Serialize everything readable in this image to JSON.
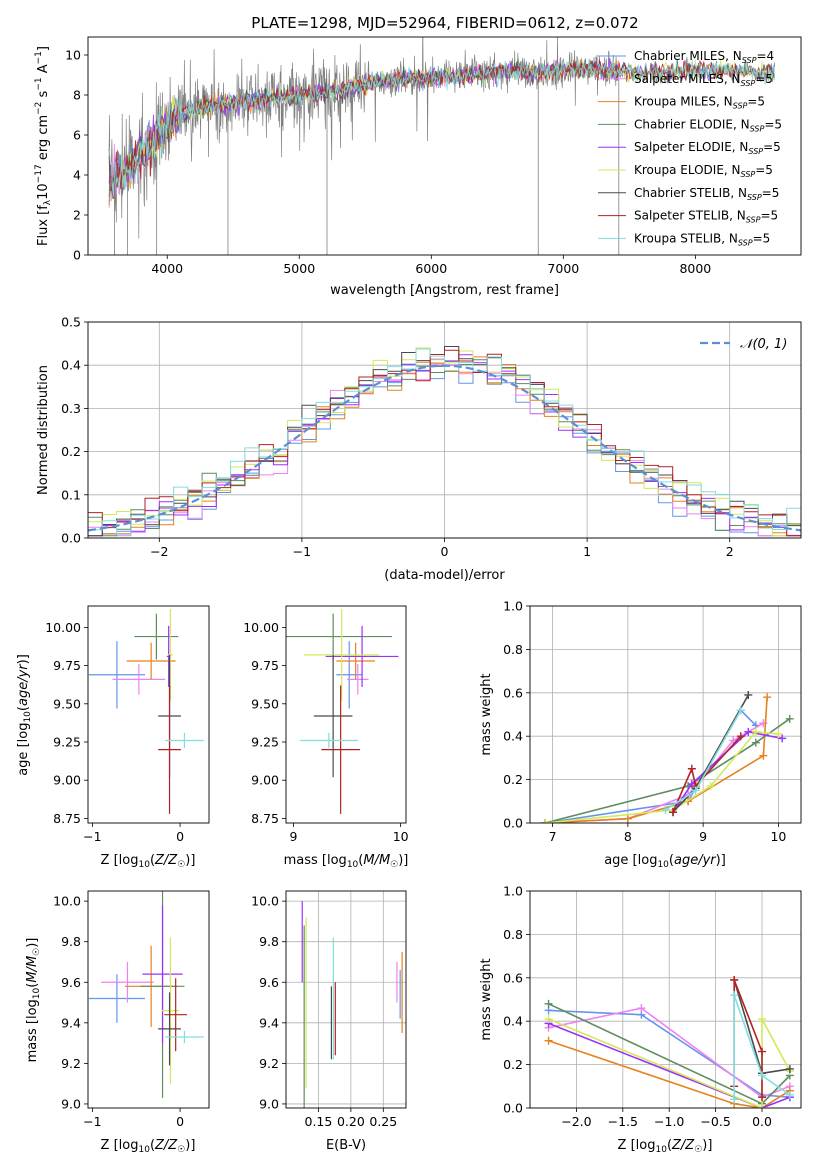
{
  "figure": {
    "title": "PLATE=1298, MJD=52964, FIBERID=0612, z=0.072"
  },
  "colors": {
    "Chabrier MILES": "#6495ed",
    "Salpeter MILES": "#ee82ee",
    "Kroupa MILES": "#e6821e",
    "Chabrier ELODIE": "#5f8c5f",
    "Salpeter ELODIE": "#9b30ff",
    "Kroupa ELODIE": "#d4e85a",
    "Chabrier STELIB": "#4a4a4a",
    "Salpeter STELIB": "#b22222",
    "Kroupa STELIB": "#80dde0",
    "data": "#808080"
  },
  "chart_data": [
    {
      "id": "spectrum",
      "type": "line",
      "title": "PLATE=1298, MJD=52964, FIBERID=0612, z=0.072",
      "xlabel": "wavelength [Angstrom, rest frame]",
      "ylabel": "Flux [f_λ 10^-17 erg cm^-2 s^-1 A^-1]",
      "xlim": [
        3400,
        8800
      ],
      "ylim": [
        0,
        10.9
      ],
      "xticks": [
        4000,
        5000,
        6000,
        7000,
        8000
      ],
      "yticks": [
        0,
        2,
        4,
        6,
        8,
        10
      ],
      "legend_position": "right",
      "legend": [
        {
          "label": "Chabrier MILES, N_SSP=4",
          "color": "#6495ed"
        },
        {
          "label": "Salpeter MILES, N_SSP=5",
          "color": "#ee82ee"
        },
        {
          "label": "Kroupa MILES, N_SSP=5",
          "color": "#e6821e"
        },
        {
          "label": "Chabrier ELODIE, N_SSP=5",
          "color": "#5f8c5f"
        },
        {
          "label": "Salpeter ELODIE, N_SSP=5",
          "color": "#9b30ff"
        },
        {
          "label": "Kroupa ELODIE, N_SSP=5",
          "color": "#d4e85a"
        },
        {
          "label": "Chabrier STELIB, N_SSP=5",
          "color": "#4a4a4a"
        },
        {
          "label": "Salpeter STELIB, N_SSP=5",
          "color": "#b22222"
        },
        {
          "label": "Kroupa STELIB, N_SSP=5",
          "color": "#80dde0"
        }
      ],
      "continuum_x": [
        3560,
        3700,
        3850,
        3950,
        4100,
        4300,
        4500,
        4800,
        5000,
        5300,
        5600,
        6000,
        6300,
        6600,
        6800,
        7000,
        7200,
        7400,
        7600,
        7900,
        8200,
        8500
      ],
      "continuum_y": [
        3.9,
        4.2,
        5.4,
        6.2,
        7.1,
        7.4,
        7.6,
        7.9,
        8.0,
        8.2,
        8.7,
        8.9,
        9.0,
        9.2,
        9.1,
        9.3,
        9.3,
        9.2,
        9.1,
        9.2,
        9.3,
        9.1
      ],
      "model_x_range": [
        3560,
        8600
      ],
      "data_x_range": [
        3560,
        7420
      ]
    },
    {
      "id": "residual_histogram",
      "type": "histogram",
      "xlabel": "(data-model)/error",
      "ylabel": "Normed distribution",
      "xlim": [
        -2.5,
        2.5
      ],
      "ylim": [
        0,
        0.5
      ],
      "xticks": [
        -2,
        -1,
        0,
        1,
        2
      ],
      "yticks": [
        0.0,
        0.1,
        0.2,
        0.3,
        0.4,
        0.5
      ],
      "bin_width": 0.1,
      "reference_curve": {
        "label": "N(0,1)",
        "type": "gaussian",
        "mean": 0,
        "sigma": 1,
        "color": "#5b8fd6"
      },
      "grid": true
    },
    {
      "id": "age_vs_Z",
      "type": "errorbar",
      "xlabel": "Z [log10(Z/Z☉)]",
      "ylabel": "age [log10(age/yr)]",
      "xlim": [
        -1.05,
        0.33
      ],
      "ylim": [
        8.72,
        10.14
      ],
      "xticks": [
        -1,
        0
      ],
      "yticks": [
        8.75,
        9.0,
        9.25,
        9.5,
        9.75,
        10.0
      ],
      "points": [
        {
          "model": "Chabrier MILES",
          "x": -0.72,
          "xerr": 0.32,
          "y": 9.69,
          "yerr": 0.22
        },
        {
          "model": "Salpeter MILES",
          "x": -0.47,
          "xerr": 0.3,
          "y": 9.66,
          "yerr": 0.1
        },
        {
          "model": "Kroupa MILES",
          "x": -0.33,
          "xerr": 0.28,
          "y": 9.78,
          "yerr": 0.12
        },
        {
          "model": "Chabrier ELODIE",
          "x": -0.27,
          "xerr": 0.25,
          "y": 9.94,
          "yerr": 0.15
        },
        {
          "model": "Salpeter ELODIE",
          "x": -0.13,
          "xerr": 0.02,
          "y": 9.81,
          "yerr": 0.2
        },
        {
          "model": "Kroupa ELODIE",
          "x": -0.11,
          "xerr": 0.03,
          "y": 9.82,
          "yerr": 0.3
        },
        {
          "model": "Chabrier STELIB",
          "x": -0.12,
          "xerr": 0.13,
          "y": 9.42,
          "yerr": 0.4
        },
        {
          "model": "Salpeter STELIB",
          "x": -0.12,
          "xerr": 0.13,
          "y": 9.2,
          "yerr": 0.42
        },
        {
          "model": "Kroupa STELIB",
          "x": 0.05,
          "xerr": 0.22,
          "y": 9.26,
          "yerr": 0.05
        }
      ]
    },
    {
      "id": "age_vs_mass",
      "type": "errorbar",
      "xlabel": "mass [log10(M/M☉)]",
      "ylabel": "",
      "xlim": [
        8.93,
        10.05
      ],
      "ylim": [
        8.72,
        10.14
      ],
      "xticks": [
        9,
        10
      ],
      "yticks": [
        8.75,
        9.0,
        9.25,
        9.5,
        9.75,
        10.0
      ],
      "points": [
        {
          "model": "Chabrier MILES",
          "x": 9.52,
          "xerr": 0.12,
          "y": 9.69,
          "yerr": 0.22
        },
        {
          "model": "Salpeter MILES",
          "x": 9.6,
          "xerr": 0.1,
          "y": 9.66,
          "yerr": 0.1
        },
        {
          "model": "Kroupa MILES",
          "x": 9.58,
          "xerr": 0.18,
          "y": 9.78,
          "yerr": 0.12
        },
        {
          "model": "Chabrier ELODIE",
          "x": 9.37,
          "xerr": 0.55,
          "y": 9.94,
          "yerr": 0.15
        },
        {
          "model": "Salpeter ELODIE",
          "x": 9.64,
          "xerr": 0.34,
          "y": 9.81,
          "yerr": 0.2
        },
        {
          "model": "Kroupa ELODIE",
          "x": 9.45,
          "xerr": 0.35,
          "y": 9.82,
          "yerr": 0.3
        },
        {
          "model": "Chabrier STELIB",
          "x": 9.37,
          "xerr": 0.18,
          "y": 9.42,
          "yerr": 0.4
        },
        {
          "model": "Salpeter STELIB",
          "x": 9.44,
          "xerr": 0.18,
          "y": 9.2,
          "yerr": 0.42
        },
        {
          "model": "Kroupa STELIB",
          "x": 9.33,
          "xerr": 0.27,
          "y": 9.26,
          "yerr": 0.05
        }
      ]
    },
    {
      "id": "mass_weight_vs_age",
      "type": "line",
      "xlabel": "age [log10(age/yr)]",
      "ylabel": "mass weight",
      "xlim": [
        6.7,
        10.3
      ],
      "ylim": [
        0,
        1.0
      ],
      "xticks": [
        7,
        8,
        9,
        10
      ],
      "yticks": [
        0.0,
        0.2,
        0.4,
        0.6,
        0.8,
        1.0
      ],
      "grid": true,
      "series": [
        {
          "model": "Chabrier MILES",
          "x": [
            6.9,
            8.8,
            9.5,
            9.7
          ],
          "y": [
            0.0,
            0.1,
            0.52,
            0.45
          ]
        },
        {
          "model": "Salpeter MILES",
          "x": [
            6.9,
            8.0,
            8.8,
            9.4,
            9.8
          ],
          "y": [
            0.0,
            0.02,
            0.13,
            0.38,
            0.46
          ]
        },
        {
          "model": "Kroupa MILES",
          "x": [
            6.9,
            8.0,
            8.8,
            9.8,
            9.85
          ],
          "y": [
            0.0,
            0.02,
            0.1,
            0.31,
            0.58
          ]
        },
        {
          "model": "Chabrier ELODIE",
          "x": [
            6.9,
            8.8,
            9.7,
            10.15
          ],
          "y": [
            0.0,
            0.17,
            0.37,
            0.48
          ]
        },
        {
          "model": "Salpeter ELODIE",
          "x": [
            8.6,
            8.85,
            9.6,
            10.05
          ],
          "y": [
            0.05,
            0.18,
            0.42,
            0.39
          ]
        },
        {
          "model": "Kroupa ELODIE",
          "x": [
            6.9,
            8.6,
            9.1,
            9.7,
            10.0
          ],
          "y": [
            0.0,
            0.06,
            0.17,
            0.42,
            0.41
          ]
        },
        {
          "model": "Chabrier STELIB",
          "x": [
            8.6,
            8.9,
            9.6
          ],
          "y": [
            0.05,
            0.16,
            0.59
          ]
        },
        {
          "model": "Salpeter STELIB",
          "x": [
            8.6,
            8.85,
            8.9,
            9.5
          ],
          "y": [
            0.05,
            0.25,
            0.17,
            0.4
          ]
        },
        {
          "model": "Kroupa STELIB",
          "x": [
            8.5,
            8.9,
            9.5
          ],
          "y": [
            0.06,
            0.15,
            0.52
          ]
        }
      ]
    },
    {
      "id": "mass_vs_Z",
      "type": "errorbar",
      "xlabel": "Z [log10(Z/Z☉)]",
      "ylabel": "mass [log10(M/M☉)]",
      "xlim": [
        -1.05,
        0.33
      ],
      "ylim": [
        8.98,
        10.05
      ],
      "xticks": [
        -1,
        0
      ],
      "yticks": [
        9.0,
        9.2,
        9.4,
        9.6,
        9.8,
        10.0
      ],
      "points": [
        {
          "model": "Chabrier MILES",
          "x": -0.72,
          "xerr": 0.32,
          "y": 9.52,
          "yerr": 0.12
        },
        {
          "model": "Salpeter MILES",
          "x": -0.6,
          "xerr": 0.3,
          "y": 9.6,
          "yerr": 0.1
        },
        {
          "model": "Kroupa MILES",
          "x": -0.33,
          "xerr": 0.3,
          "y": 9.58,
          "yerr": 0.2
        },
        {
          "model": "Chabrier ELODIE",
          "x": -0.2,
          "xerr": 0.25,
          "y": 9.58,
          "yerr": 0.55
        },
        {
          "model": "Salpeter ELODIE",
          "x": -0.2,
          "xerr": 0.23,
          "y": 9.64,
          "yerr": 0.34
        },
        {
          "model": "Kroupa ELODIE",
          "x": -0.11,
          "xerr": 0.1,
          "y": 9.46,
          "yerr": 0.36
        },
        {
          "model": "Chabrier STELIB",
          "x": -0.12,
          "xerr": 0.13,
          "y": 9.37,
          "yerr": 0.18
        },
        {
          "model": "Salpeter STELIB",
          "x": -0.05,
          "xerr": 0.13,
          "y": 9.44,
          "yerr": 0.18
        },
        {
          "model": "Kroupa STELIB",
          "x": 0.05,
          "xerr": 0.22,
          "y": 9.33,
          "yerr": 0.03
        }
      ]
    },
    {
      "id": "mass_vs_EBV",
      "type": "errorbar",
      "xlabel": "E(B-V)",
      "ylabel": "",
      "xlim": [
        0.1,
        0.285
      ],
      "ylim": [
        8.98,
        10.05
      ],
      "xticks": [
        0.15,
        0.2,
        0.25
      ],
      "xticklabels": [
        "0.15",
        "0.20",
        "0.25"
      ],
      "yticks": [
        9.0,
        9.2,
        9.4,
        9.6,
        9.8,
        10.0
      ],
      "grid": true,
      "points": [
        {
          "model": "Salpeter MILES",
          "x": 0.271,
          "y": 9.6,
          "yerr": 0.1
        },
        {
          "model": "Kroupa MILES",
          "x": 0.279,
          "y": 9.55,
          "yerr": 0.2
        },
        {
          "model": "Chabrier MILES",
          "x": 0.276,
          "y": 9.54,
          "yerr": 0.12
        },
        {
          "model": "Salpeter ELODIE",
          "x": 0.125,
          "y": 9.8,
          "yerr": 0.2
        },
        {
          "model": "Chabrier ELODIE",
          "x": 0.128,
          "y": 9.4,
          "yerr": 0.48
        },
        {
          "model": "Kroupa ELODIE",
          "x": 0.131,
          "y": 9.5,
          "yerr": 0.42
        },
        {
          "model": "Chabrier STELIB",
          "x": 0.17,
          "y": 9.4,
          "yerr": 0.18
        },
        {
          "model": "Salpeter STELIB",
          "x": 0.176,
          "y": 9.42,
          "yerr": 0.18
        },
        {
          "model": "Kroupa STELIB",
          "x": 0.173,
          "y": 9.52,
          "yerr": 0.3
        }
      ]
    },
    {
      "id": "mass_weight_vs_Z",
      "type": "line",
      "xlabel": "Z [log10(Z/Z☉)]",
      "ylabel": "mass weight",
      "xlim": [
        -2.5,
        0.42
      ],
      "ylim": [
        0,
        1.0
      ],
      "xticks": [
        -2.0,
        -1.5,
        -1.0,
        -0.5,
        0.0
      ],
      "yticks": [
        0.0,
        0.2,
        0.4,
        0.6,
        0.8,
        1.0
      ],
      "grid": true,
      "series": [
        {
          "model": "Chabrier MILES",
          "x": [
            -2.3,
            -1.3,
            0.0,
            0.3
          ],
          "y": [
            0.45,
            0.43,
            0.06,
            0.05
          ]
        },
        {
          "model": "Salpeter MILES",
          "x": [
            -2.3,
            -1.3,
            0.0,
            0.3
          ],
          "y": [
            0.37,
            0.46,
            0.05,
            0.1
          ]
        },
        {
          "model": "Kroupa MILES",
          "x": [
            -2.3,
            -0.3,
            0.0,
            0.3
          ],
          "y": [
            0.31,
            0.02,
            0.0,
            0.08
          ]
        },
        {
          "model": "Chabrier ELODIE",
          "x": [
            -2.3,
            0.0,
            0.3
          ],
          "y": [
            0.48,
            0.02,
            0.15
          ]
        },
        {
          "model": "Salpeter ELODIE",
          "x": [
            -2.3,
            0.0,
            0.3
          ],
          "y": [
            0.39,
            0.0,
            0.05
          ]
        },
        {
          "model": "Kroupa ELODIE",
          "x": [
            -2.3,
            0.0,
            0.0,
            0.3
          ],
          "y": [
            0.41,
            0.0,
            0.41,
            0.17
          ]
        },
        {
          "model": "Chabrier STELIB",
          "x": [
            -0.3,
            0.0,
            0.3
          ],
          "y": [
            0.59,
            0.16,
            0.18
          ]
        },
        {
          "model": "Salpeter STELIB",
          "x": [
            -0.3,
            -0.3,
            0.0,
            0.0
          ],
          "y": [
            0.1,
            0.59,
            0.26,
            0.05
          ]
        },
        {
          "model": "Kroupa STELIB",
          "x": [
            -0.3,
            -0.3,
            0.0,
            0.3
          ],
          "y": [
            0.04,
            0.52,
            0.15,
            0.06
          ]
        }
      ]
    }
  ]
}
